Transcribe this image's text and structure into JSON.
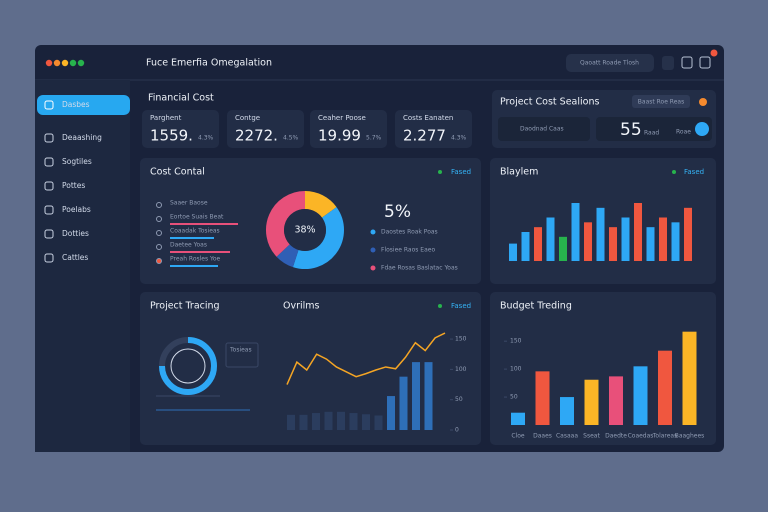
{
  "app": {
    "title": "Fuce Emerfia Omegalation",
    "search": "Qaoatt Roade Tlosh"
  },
  "sidebar": {
    "items": [
      "Dasbes",
      "Deaashing",
      "Sogtiles",
      "Pottes",
      "Poelabs",
      "Dotties",
      "Cattles"
    ]
  },
  "financial": {
    "title": "Financial Cost",
    "cards": [
      {
        "label": "Parghent",
        "value": "1559.",
        "delta": "4.3%"
      },
      {
        "label": "Contge",
        "value": "2272.",
        "delta": "4.5%"
      },
      {
        "label": "Ceaher Poose",
        "value": "19.99",
        "delta": "5.7%"
      },
      {
        "label": "Costs Eanaten",
        "value": "2.277",
        "delta": "4.3%"
      }
    ]
  },
  "project_cost": {
    "title": "Project Cost Sealions",
    "button": "Baast Roe Reas",
    "select": "Daodnad Caas",
    "value": "55",
    "unit": "Raad",
    "tag": "Roae"
  },
  "cost_control": {
    "title": "Cost Contal",
    "link": "Fased",
    "rows": [
      {
        "label": "Saaer Baose",
        "value": 0
      },
      {
        "label": "Eortoe Suais Beat",
        "value": 85
      },
      {
        "label": "Coaadak Tosieas",
        "value": 55
      },
      {
        "label": "Daetee Yoas",
        "value": 75
      },
      {
        "label": "Preah Rosles Yoe",
        "value": 60
      }
    ],
    "donut": {
      "center": "38%",
      "values": [
        15,
        40,
        8,
        37
      ],
      "colors": [
        "#fbb526",
        "#2ea8f5",
        "#2f5fb5",
        "#e8507a"
      ]
    },
    "stat": "5%",
    "legend": [
      "Daostes Roak Poas",
      "Flosiee Raos Eaeo",
      "Fdae Rosas Baslatac Yoas"
    ]
  },
  "bar_panel": {
    "title": "Blaylem",
    "link": "Fased",
    "values": [
      18,
      30,
      35,
      45,
      25,
      60,
      40,
      55,
      35,
      45,
      60,
      35,
      45,
      40,
      55
    ],
    "colors": [
      "#2ea8f5",
      "#2ea8f5",
      "#f0573f",
      "#2ea8f5",
      "#27b34d",
      "#2ea8f5",
      "#f0573f",
      "#2ea8f5",
      "#f0573f",
      "#2ea8f5",
      "#f0573f",
      "#2ea8f5",
      "#f0573f",
      "#2ea8f5",
      "#f0573f"
    ]
  },
  "tracking": {
    "title": "Project Tracing",
    "ring": 75,
    "legend": "Tosieas"
  },
  "trend": {
    "title": "Ovrilms",
    "link": "Fased",
    "ylim": [
      0,
      165
    ],
    "yticks": [
      150,
      100,
      50,
      0
    ],
    "line": [
      75,
      112,
      99,
      125,
      117,
      104,
      96,
      88,
      93,
      99,
      104,
      101,
      120,
      144,
      131,
      152,
      160
    ],
    "bars": [
      25,
      25,
      28,
      30,
      30,
      28,
      26,
      24,
      56,
      88,
      112,
      112
    ]
  },
  "budget": {
    "title": "Budget Treding",
    "ylim": [
      0,
      170
    ],
    "yticks": [
      150,
      100,
      50
    ],
    "categories": [
      "Cloe",
      "Daaes",
      "Casaaa",
      "Sseat",
      "Daedte",
      "Coaedas",
      "Tolareas",
      "Baaghees"
    ],
    "values": [
      22,
      96,
      50,
      81,
      87,
      105,
      133,
      167
    ],
    "colors": [
      "#2ea8f5",
      "#f0573f",
      "#2ea8f5",
      "#fbb526",
      "#e8507a",
      "#2ea8f5",
      "#f0573f",
      "#fbb526"
    ]
  }
}
